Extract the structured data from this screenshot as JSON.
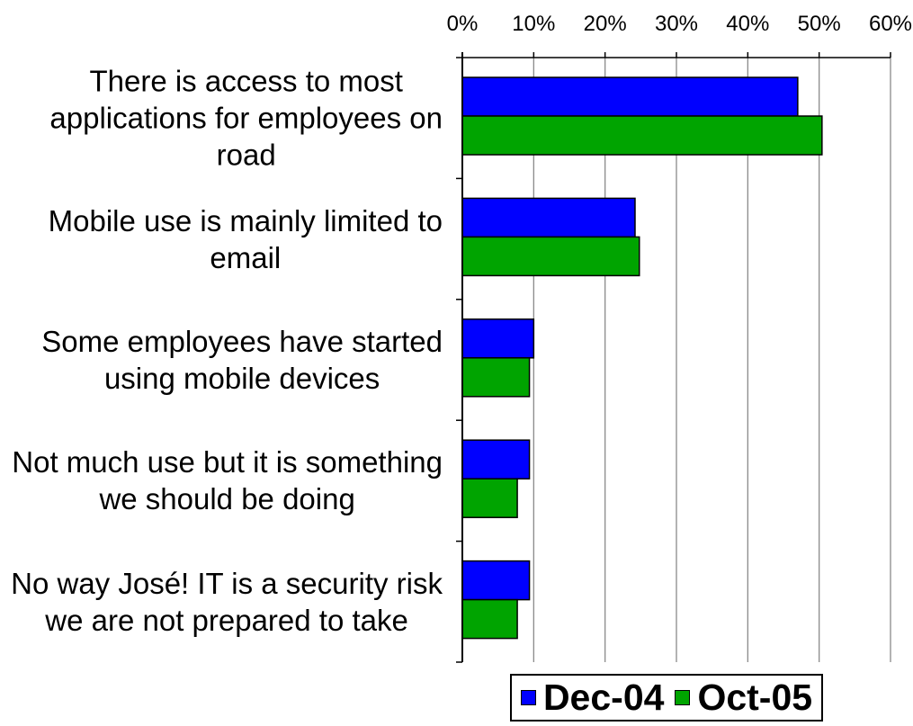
{
  "chart_data": {
    "type": "bar",
    "orientation": "horizontal",
    "categories": [
      "There is access to most\napplications for employees on\nroad",
      "Mobile use is mainly limited to\nemail",
      "Some employees have started\nusing mobile devices",
      "Not much use but it is something\nwe should be doing",
      "No way José! IT is a security risk\nwe are not prepared to take"
    ],
    "series": [
      {
        "name": "Dec-04",
        "color": "#0000ff",
        "values": [
          47.0,
          24.2,
          10.0,
          9.4,
          9.4
        ]
      },
      {
        "name": "Oct-05",
        "color": "#00a400",
        "values": [
          50.4,
          24.8,
          9.4,
          7.7,
          7.7
        ]
      }
    ],
    "xlim": [
      0,
      60
    ],
    "xticks": [
      "0%",
      "10%",
      "20%",
      "30%",
      "40%",
      "50%",
      "60%"
    ],
    "x_axis_position": "top",
    "grid": true,
    "gridline_color": "#8a8a8a",
    "legend": "bottom"
  }
}
